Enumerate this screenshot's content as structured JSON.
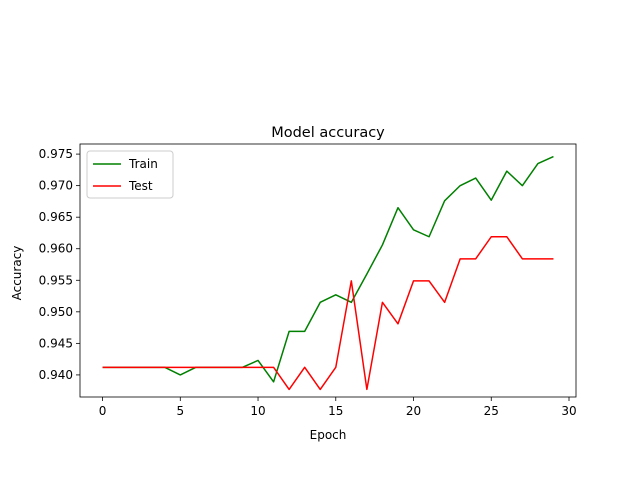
{
  "chart_data": {
    "type": "line",
    "title": "Model accuracy",
    "xlabel": "Epoch",
    "ylabel": "Accuracy",
    "xlim": [
      -1.45,
      30.45
    ],
    "ylim": [
      0.9365,
      0.9766
    ],
    "xticks": [
      0,
      5,
      10,
      15,
      20,
      25,
      30
    ],
    "xtick_labels": [
      "0",
      "5",
      "10",
      "15",
      "20",
      "25",
      "30"
    ],
    "yticks": [
      0.94,
      0.945,
      0.95,
      0.955,
      0.96,
      0.965,
      0.97,
      0.975
    ],
    "ytick_labels": [
      "0.940",
      "0.945",
      "0.950",
      "0.955",
      "0.960",
      "0.965",
      "0.970",
      "0.975"
    ],
    "grid": false,
    "legend_position": "top-left",
    "x": [
      0,
      1,
      2,
      3,
      4,
      5,
      6,
      7,
      8,
      9,
      10,
      11,
      12,
      13,
      14,
      15,
      16,
      17,
      18,
      19,
      20,
      21,
      22,
      23,
      24,
      25,
      26,
      27,
      28,
      29
    ],
    "series": [
      {
        "name": "Train",
        "color": "#008000",
        "values": [
          0.9412,
          0.9412,
          0.9412,
          0.9412,
          0.9412,
          0.94,
          0.9412,
          0.9412,
          0.9412,
          0.9412,
          0.9423,
          0.9389,
          0.9469,
          0.9469,
          0.9515,
          0.9527,
          0.9515,
          0.956,
          0.9606,
          0.9665,
          0.963,
          0.9619,
          0.9676,
          0.97,
          0.9712,
          0.9677,
          0.9723,
          0.97,
          0.9735,
          0.9746
        ]
      },
      {
        "name": "Test",
        "color": "#ff0000",
        "values": [
          0.9412,
          0.9412,
          0.9412,
          0.9412,
          0.9412,
          0.9412,
          0.9412,
          0.9412,
          0.9412,
          0.9412,
          0.9412,
          0.9412,
          0.9377,
          0.9412,
          0.9377,
          0.9412,
          0.9549,
          0.9377,
          0.9515,
          0.9481,
          0.9549,
          0.9549,
          0.9515,
          0.9584,
          0.9584,
          0.9619,
          0.9619,
          0.9584,
          0.9584,
          0.9584
        ]
      }
    ]
  }
}
